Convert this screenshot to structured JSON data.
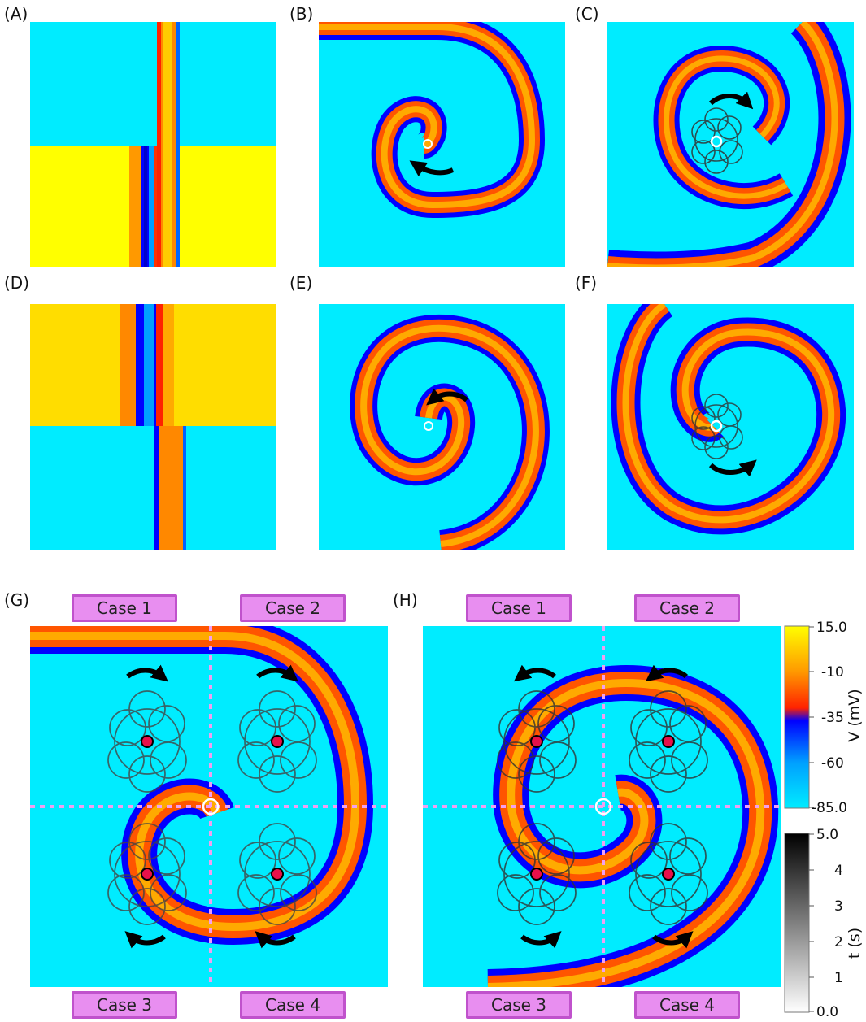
{
  "panels": {
    "A": {
      "label": "(A)"
    },
    "B": {
      "label": "(B)"
    },
    "C": {
      "label": "(C)"
    },
    "D": {
      "label": "(D)"
    },
    "E": {
      "label": "(E)"
    },
    "F": {
      "label": "(F)"
    },
    "G": {
      "label": "(G)",
      "cases": [
        "Case 1",
        "Case 2",
        "Case 3",
        "Case 4"
      ]
    },
    "H": {
      "label": "(H)",
      "cases": [
        "Case 1",
        "Case 2",
        "Case 3",
        "Case 4"
      ]
    }
  },
  "colorbar_voltage": {
    "title": "V (mV)",
    "ticks": [
      "15.0",
      "-10",
      "-35",
      "-60",
      "-85.0"
    ],
    "colors": [
      "#ffff00",
      "#ff8800",
      "#ff1a00",
      "#0000ff",
      "#00e5ff"
    ]
  },
  "colorbar_time": {
    "title": "t (s)",
    "ticks": [
      "5.0",
      "4",
      "3",
      "2",
      "1",
      "0.0"
    ],
    "colors": [
      "#000000",
      "#ffffff"
    ]
  },
  "colors": {
    "rest": "#00ecff",
    "excited": "#ffff00",
    "wave_front": "#ff7f1a",
    "wave_back": "#1a1aff",
    "marker": "#e8104a",
    "guide_line": "#f0a0f0"
  }
}
